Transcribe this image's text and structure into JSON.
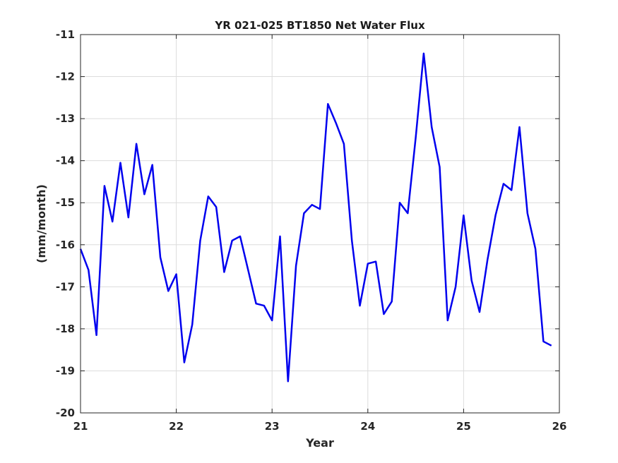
{
  "chart_data": {
    "type": "line",
    "title": "YR 021-025 BT1850 Net Water Flux",
    "xlabel": "Year",
    "ylabel": "(mm/month)",
    "xlim": [
      21,
      26
    ],
    "ylim": [
      -20,
      -11
    ],
    "xticks": [
      21,
      22,
      23,
      24,
      25,
      26
    ],
    "yticks": [
      -20,
      -19,
      -18,
      -17,
      -16,
      -15,
      -14,
      -13,
      -12,
      -11
    ],
    "grid": true,
    "line_color": "#0000ee",
    "series": [
      {
        "x": [
          21.0,
          21.083,
          21.167,
          21.25,
          21.333,
          21.417,
          21.5,
          21.583,
          21.667,
          21.75,
          21.833,
          21.917,
          22.0,
          22.083,
          22.167,
          22.25,
          22.333,
          22.417,
          22.5,
          22.583,
          22.667,
          22.75,
          22.833,
          22.917,
          23.0,
          23.083,
          23.167,
          23.25,
          23.333,
          23.417,
          23.5,
          23.583,
          23.667,
          23.75,
          23.833,
          23.917,
          24.0,
          24.083,
          24.167,
          24.25,
          24.333,
          24.417,
          24.5,
          24.583,
          24.667,
          24.75,
          24.833,
          24.917,
          25.0,
          25.083,
          25.167,
          25.25,
          25.333,
          25.417,
          25.5,
          25.583,
          25.667,
          25.75,
          25.833,
          25.917
        ],
        "y": [
          -16.1,
          -16.6,
          -18.15,
          -14.6,
          -15.45,
          -14.05,
          -15.35,
          -13.6,
          -14.8,
          -14.1,
          -16.3,
          -17.1,
          -16.7,
          -18.8,
          -17.9,
          -15.9,
          -14.85,
          -15.1,
          -16.65,
          -15.9,
          -15.8,
          -16.6,
          -17.4,
          -17.45,
          -17.8,
          -15.8,
          -19.25,
          -16.5,
          -15.25,
          -15.05,
          -15.15,
          -12.65,
          -13.1,
          -13.6,
          -15.9,
          -17.45,
          -16.45,
          -16.4,
          -17.65,
          -17.35,
          -15.0,
          -15.25,
          -13.45,
          -11.45,
          -13.2,
          -14.15,
          -17.8,
          -17.0,
          -15.3,
          -16.85,
          -17.6,
          -16.35,
          -15.3,
          -14.55,
          -14.7,
          -13.2,
          -15.25,
          -16.1,
          -18.3,
          -18.4
        ]
      }
    ]
  }
}
